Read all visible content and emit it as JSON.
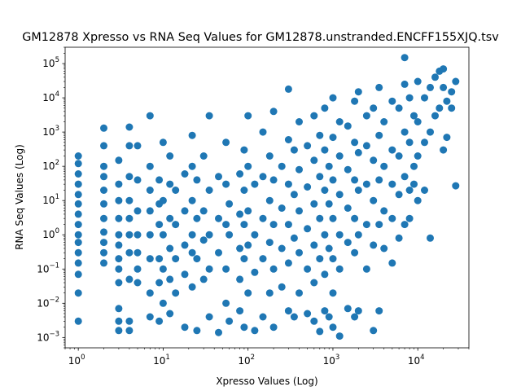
{
  "chart_data": {
    "type": "scatter",
    "title": "GM12878 Xpresso vs RNA Seq Values for GM12878.unstranded.ENCFF155XJQ.tsv",
    "xlabel": "Xpresso Values (Log)",
    "ylabel": "RNA Seq Values (Log)",
    "xscale": "log",
    "yscale": "log",
    "xlim": [
      0.7,
      40000
    ],
    "ylim": [
      0.0005,
      300000
    ],
    "x_ticks": [
      {
        "base": "10",
        "exp": "0"
      },
      {
        "base": "10",
        "exp": "1"
      },
      {
        "base": "10",
        "exp": "2"
      },
      {
        "base": "10",
        "exp": "3"
      },
      {
        "base": "10",
        "exp": "4"
      }
    ],
    "y_ticks": [
      {
        "base": "10",
        "exp": "−3"
      },
      {
        "base": "10",
        "exp": "−2"
      },
      {
        "base": "10",
        "exp": "−1"
      },
      {
        "base": "10",
        "exp": "0"
      },
      {
        "base": "10",
        "exp": "1"
      },
      {
        "base": "10",
        "exp": "2"
      },
      {
        "base": "10",
        "exp": "3"
      },
      {
        "base": "10",
        "exp": "4"
      },
      {
        "base": "10",
        "exp": "5"
      }
    ],
    "grid": false,
    "marker_color": "#1f77b4",
    "series": [
      {
        "points": [
          [
            1,
            0.003
          ],
          [
            1,
            0.02
          ],
          [
            1,
            0.07
          ],
          [
            1,
            0.15
          ],
          [
            1,
            0.3
          ],
          [
            1,
            0.6
          ],
          [
            1,
            1
          ],
          [
            1,
            2
          ],
          [
            1,
            4
          ],
          [
            1,
            8
          ],
          [
            1,
            15
          ],
          [
            1,
            30
          ],
          [
            1,
            60
          ],
          [
            1,
            120
          ],
          [
            1,
            200
          ],
          [
            2,
            0.15
          ],
          [
            2,
            0.3
          ],
          [
            2,
            0.6
          ],
          [
            2,
            1.2
          ],
          [
            2,
            3
          ],
          [
            2,
            8
          ],
          [
            2,
            20
          ],
          [
            2,
            50
          ],
          [
            2,
            100
          ],
          [
            2,
            400
          ],
          [
            2,
            1300
          ],
          [
            3,
            0.0016
          ],
          [
            3,
            0.003
          ],
          [
            3,
            0.007
          ],
          [
            3,
            0.04
          ],
          [
            3,
            0.1
          ],
          [
            3,
            0.2
          ],
          [
            3,
            0.5
          ],
          [
            3,
            1
          ],
          [
            3,
            3
          ],
          [
            3,
            10
          ],
          [
            3,
            30
          ],
          [
            3,
            150
          ],
          [
            4,
            0.0016
          ],
          [
            4,
            0.003
          ],
          [
            4,
            0.05
          ],
          [
            4,
            0.3
          ],
          [
            4,
            1
          ],
          [
            4,
            3
          ],
          [
            4,
            10
          ],
          [
            4,
            50
          ],
          [
            4,
            400
          ],
          [
            4,
            1400
          ],
          [
            5,
            0.04
          ],
          [
            5,
            0.1
          ],
          [
            5,
            0.3
          ],
          [
            5,
            1
          ],
          [
            5,
            5
          ],
          [
            5,
            40
          ],
          [
            5,
            400
          ],
          [
            7,
            0.004
          ],
          [
            7,
            0.02
          ],
          [
            7,
            0.2
          ],
          [
            7,
            1
          ],
          [
            7,
            5
          ],
          [
            7,
            20
          ],
          [
            7,
            100
          ],
          [
            7,
            3000
          ],
          [
            9,
            0.003
          ],
          [
            9,
            0.04
          ],
          [
            9,
            0.2
          ],
          [
            9,
            2
          ],
          [
            9,
            8
          ],
          [
            9,
            40
          ],
          [
            10,
            0.01
          ],
          [
            10,
            0.1
          ],
          [
            10,
            1
          ],
          [
            10,
            10
          ],
          [
            10,
            500
          ],
          [
            12,
            0.005
          ],
          [
            12,
            0.05
          ],
          [
            12,
            0.4
          ],
          [
            12,
            3
          ],
          [
            12,
            30
          ],
          [
            12,
            200
          ],
          [
            14,
            0.02
          ],
          [
            14,
            0.2
          ],
          [
            14,
            2
          ],
          [
            14,
            20
          ],
          [
            18,
            0.002
          ],
          [
            18,
            0.07
          ],
          [
            18,
            0.5
          ],
          [
            18,
            5
          ],
          [
            18,
            60
          ],
          [
            22,
            0.03
          ],
          [
            22,
            0.3
          ],
          [
            22,
            1
          ],
          [
            22,
            10
          ],
          [
            22,
            100
          ],
          [
            22,
            800
          ],
          [
            25,
            0.0016
          ],
          [
            25,
            0.2
          ],
          [
            25,
            3
          ],
          [
            25,
            40
          ],
          [
            30,
            0.05
          ],
          [
            30,
            0.7
          ],
          [
            30,
            5
          ],
          [
            30,
            200
          ],
          [
            35,
            0.004
          ],
          [
            35,
            0.1
          ],
          [
            35,
            1
          ],
          [
            35,
            20
          ],
          [
            35,
            3000
          ],
          [
            45,
            0.0014
          ],
          [
            45,
            0.3
          ],
          [
            45,
            3
          ],
          [
            45,
            50
          ],
          [
            55,
            0.01
          ],
          [
            55,
            0.1
          ],
          [
            55,
            2
          ],
          [
            55,
            30
          ],
          [
            55,
            500
          ],
          [
            60,
            0.003
          ],
          [
            60,
            1
          ],
          [
            60,
            8
          ],
          [
            80,
            0.006
          ],
          [
            80,
            0.05
          ],
          [
            80,
            0.4
          ],
          [
            80,
            4
          ],
          [
            80,
            60
          ],
          [
            90,
            0.002
          ],
          [
            90,
            0.2
          ],
          [
            90,
            2
          ],
          [
            90,
            20
          ],
          [
            90,
            300
          ],
          [
            100,
            0.02
          ],
          [
            100,
            0.5
          ],
          [
            100,
            5
          ],
          [
            100,
            100
          ],
          [
            100,
            3000
          ],
          [
            120,
            0.0016
          ],
          [
            120,
            0.08
          ],
          [
            120,
            1
          ],
          [
            120,
            30
          ],
          [
            150,
            0.004
          ],
          [
            150,
            0.2
          ],
          [
            150,
            3
          ],
          [
            150,
            50
          ],
          [
            150,
            1000
          ],
          [
            180,
            0.02
          ],
          [
            180,
            0.6
          ],
          [
            180,
            10
          ],
          [
            180,
            200
          ],
          [
            200,
            0.002
          ],
          [
            200,
            0.1
          ],
          [
            200,
            2
          ],
          [
            200,
            40
          ],
          [
            200,
            4000
          ],
          [
            250,
            0.03
          ],
          [
            250,
            0.4
          ],
          [
            250,
            6
          ],
          [
            250,
            100
          ],
          [
            300,
            0.006
          ],
          [
            300,
            0.15
          ],
          [
            300,
            2
          ],
          [
            300,
            30
          ],
          [
            300,
            600
          ],
          [
            300,
            18000
          ],
          [
            350,
            0.004
          ],
          [
            350,
            0.8
          ],
          [
            350,
            15
          ],
          [
            350,
            300
          ],
          [
            400,
            0.02
          ],
          [
            400,
            0.3
          ],
          [
            400,
            5
          ],
          [
            400,
            80
          ],
          [
            400,
            2000
          ],
          [
            500,
            0.005
          ],
          [
            500,
            0.1
          ],
          [
            500,
            1.5
          ],
          [
            500,
            25
          ],
          [
            500,
            400
          ],
          [
            600,
            0.003
          ],
          [
            600,
            0.04
          ],
          [
            600,
            0.5
          ],
          [
            600,
            8
          ],
          [
            600,
            150
          ],
          [
            600,
            3000
          ],
          [
            700,
            0.0015
          ],
          [
            700,
            0.2
          ],
          [
            700,
            3
          ],
          [
            700,
            50
          ],
          [
            700,
            800
          ],
          [
            800,
            0.006
          ],
          [
            800,
            0.07
          ],
          [
            800,
            1
          ],
          [
            800,
            20
          ],
          [
            800,
            300
          ],
          [
            800,
            5000
          ],
          [
            900,
            0.004
          ],
          [
            900,
            0.4
          ],
          [
            900,
            8
          ],
          [
            900,
            100
          ],
          [
            1000,
            0.002
          ],
          [
            1000,
            0.02
          ],
          [
            1000,
            0.2
          ],
          [
            1000,
            3
          ],
          [
            1000,
            40
          ],
          [
            1000,
            700
          ],
          [
            1000,
            10000
          ],
          [
            1200,
            0.0011
          ],
          [
            1200,
            0.1
          ],
          [
            1200,
            1
          ],
          [
            1200,
            15
          ],
          [
            1200,
            200
          ],
          [
            1200,
            2000
          ],
          [
            1500,
            0.007
          ],
          [
            1500,
            0.6
          ],
          [
            1500,
            6
          ],
          [
            1500,
            80
          ],
          [
            1500,
            1500
          ],
          [
            1800,
            0.004
          ],
          [
            1800,
            0.3
          ],
          [
            1800,
            3
          ],
          [
            1800,
            40
          ],
          [
            1800,
            500
          ],
          [
            1800,
            8000
          ],
          [
            2000,
            0.006
          ],
          [
            2000,
            1
          ],
          [
            2000,
            20
          ],
          [
            2000,
            250
          ],
          [
            2000,
            15000
          ],
          [
            2500,
            0.1
          ],
          [
            2500,
            2
          ],
          [
            2500,
            30
          ],
          [
            2500,
            400
          ],
          [
            2500,
            3000
          ],
          [
            3000,
            0.0016
          ],
          [
            3000,
            0.5
          ],
          [
            3000,
            10
          ],
          [
            3000,
            150
          ],
          [
            3000,
            5000
          ],
          [
            3500,
            0.006
          ],
          [
            3500,
            2
          ],
          [
            3500,
            40
          ],
          [
            3500,
            800
          ],
          [
            3500,
            20000
          ],
          [
            4000,
            0.4
          ],
          [
            4000,
            5
          ],
          [
            4000,
            100
          ],
          [
            4000,
            2000
          ],
          [
            5000,
            0.15
          ],
          [
            5000,
            3
          ],
          [
            5000,
            30
          ],
          [
            5000,
            300
          ],
          [
            5000,
            8000
          ],
          [
            6000,
            0.8
          ],
          [
            6000,
            15
          ],
          [
            6000,
            200
          ],
          [
            6000,
            5000
          ],
          [
            7000,
            2
          ],
          [
            7000,
            50
          ],
          [
            7000,
            1000
          ],
          [
            7000,
            25000
          ],
          [
            7000,
            150000
          ],
          [
            8000,
            3
          ],
          [
            8000,
            20
          ],
          [
            8000,
            500
          ],
          [
            8000,
            10000
          ],
          [
            9000,
            30
          ],
          [
            9000,
            100
          ],
          [
            9000,
            3000
          ],
          [
            10000,
            10
          ],
          [
            10000,
            200
          ],
          [
            10000,
            2000
          ],
          [
            10000,
            30000
          ],
          [
            12000,
            20
          ],
          [
            12000,
            500
          ],
          [
            12000,
            10000
          ],
          [
            14000,
            0.8
          ],
          [
            14000,
            1000
          ],
          [
            14000,
            20000
          ],
          [
            16000,
            3000
          ],
          [
            16000,
            40000
          ],
          [
            18000,
            5000
          ],
          [
            18000,
            60000
          ],
          [
            20000,
            300
          ],
          [
            20000,
            20000
          ],
          [
            20000,
            70000
          ],
          [
            22000,
            700
          ],
          [
            22000,
            8000
          ],
          [
            25000,
            5000
          ],
          [
            25000,
            15000
          ],
          [
            28000,
            27
          ],
          [
            28000,
            30000
          ]
        ]
      }
    ]
  }
}
